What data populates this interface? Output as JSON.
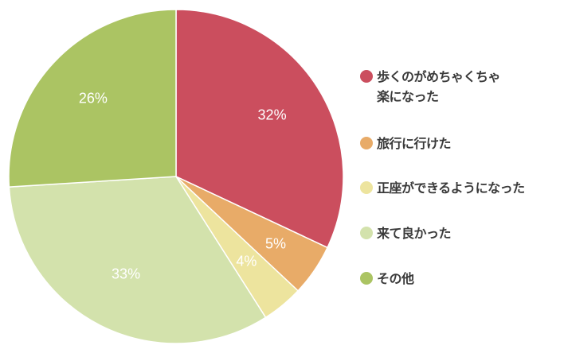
{
  "chart_data": {
    "type": "pie",
    "title": "",
    "start_angle_deg": 0,
    "direction": "clockwise",
    "categories": [
      "歩くのがめちゃくちゃ楽になった",
      "旅行に行けた",
      "正座ができるようになった",
      "来て良かった",
      "その他"
    ],
    "values": [
      32,
      5,
      4,
      33,
      26
    ],
    "labels": [
      "32%",
      "5%",
      "4%",
      "33%",
      "26%"
    ],
    "colors": [
      "#CB4E5E",
      "#E8AB68",
      "#EDE49E",
      "#D3E2AC",
      "#ABC463"
    ],
    "legend_position": "right"
  },
  "legend": [
    {
      "label": "歩くのがめちゃくちゃ\n楽になった",
      "color": "#CB4E5E"
    },
    {
      "label": "旅行に行けた",
      "color": "#E8AB68"
    },
    {
      "label": "正座ができるようになった",
      "color": "#EDE49E"
    },
    {
      "label": "来て良かった",
      "color": "#D3E2AC"
    },
    {
      "label": "その他",
      "color": "#ABC463"
    }
  ]
}
